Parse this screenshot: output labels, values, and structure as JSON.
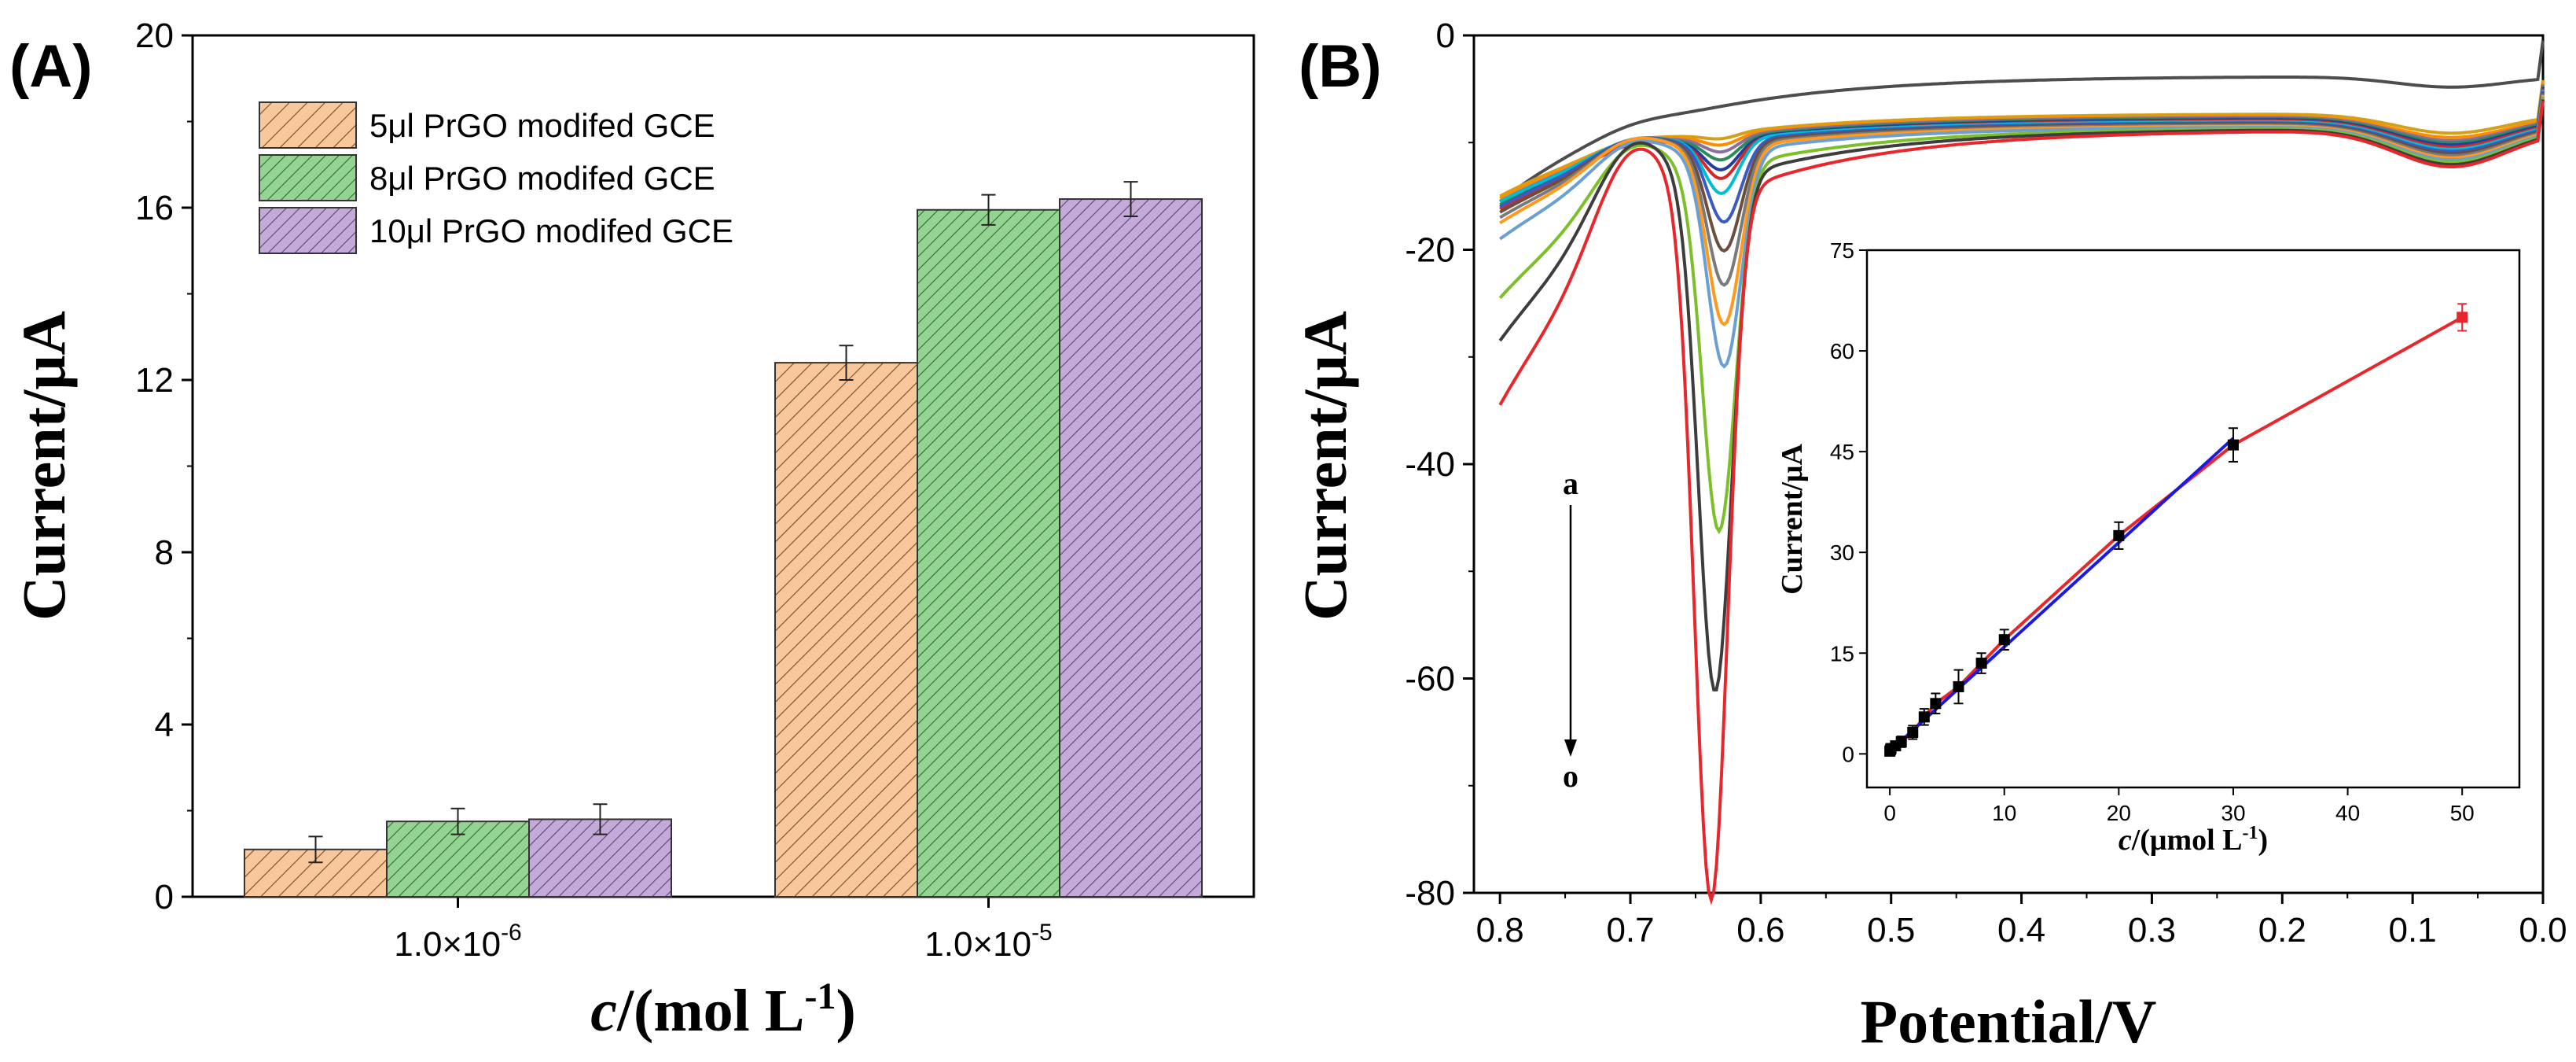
{
  "chart_data": [
    {
      "panel": "(A)",
      "type": "bar",
      "xlabel_italic": "c",
      "xlabel_rest": "/(mol L",
      "xlabel_sup": "-1",
      "xlabel_close": ")",
      "ylabel": "Current/μA",
      "ylim": [
        0,
        20
      ],
      "yticks": [
        "0",
        "4",
        "8",
        "12",
        "16",
        "20"
      ],
      "categories": [
        {
          "base": "1.0×10",
          "exp": "-6"
        },
        {
          "base": "1.0×10",
          "exp": "-5"
        }
      ],
      "series": [
        {
          "name": "5μl PrGO modifed GCE",
          "color": "#f8c79c",
          "values": [
            1.1,
            12.4
          ],
          "errors": [
            0.3,
            0.4
          ]
        },
        {
          "name": "8μl PrGO modifed GCE",
          "color": "#93d493",
          "values": [
            1.75,
            15.95
          ],
          "errors": [
            0.3,
            0.35
          ]
        },
        {
          "name": "10μl PrGO modifed GCE",
          "color": "#c4aad8",
          "values": [
            1.8,
            16.2
          ],
          "errors": [
            0.35,
            0.4
          ]
        }
      ],
      "legend_position": "top-left"
    },
    {
      "panel": "(B)",
      "type": "line",
      "xlabel": "Potential/V",
      "ylabel": "Current/μA",
      "xlim": [
        0.8,
        0.0
      ],
      "ylim": [
        -80,
        0
      ],
      "xticks": [
        "0.8",
        "0.7",
        "0.6",
        "0.5",
        "0.4",
        "0.3",
        "0.2",
        "0.1",
        "0.0"
      ],
      "yticks": [
        "0",
        "-20",
        "-40",
        "-60",
        "-80"
      ],
      "annotation_start": "a",
      "annotation_end": "o",
      "curves": [
        {
          "color": "#4d4d4d",
          "start": -15.5,
          "plateau": -3.8,
          "peak_depth": 0.0,
          "peak_pos": 0.63,
          "rise": 0.5,
          "shoulder": -1.0
        },
        {
          "color": "#d4a017",
          "start": -15.0,
          "plateau": -7.3,
          "peak_depth": 0.5,
          "peak_pos": 0.63,
          "rise": 0.8,
          "shoulder": -1.8
        },
        {
          "color": "#ff8c00",
          "start": -15.2,
          "plateau": -7.5,
          "peak_depth": 0.9,
          "peak_pos": 0.63,
          "rise": 0.9,
          "shoulder": -2.0
        },
        {
          "color": "#8b6f9e",
          "start": -15.5,
          "plateau": -7.6,
          "peak_depth": 1.4,
          "peak_pos": 0.63,
          "rise": 1.0,
          "shoulder": -2.2
        },
        {
          "color": "#2e8b57",
          "start": -15.8,
          "plateau": -7.7,
          "peak_depth": 2.0,
          "peak_pos": 0.63,
          "rise": 1.1,
          "shoulder": -2.3
        },
        {
          "color": "#1f3fa0",
          "start": -16.0,
          "plateau": -7.8,
          "peak_depth": 2.8,
          "peak_pos": 0.63,
          "rise": 1.2,
          "shoulder": -2.4
        },
        {
          "color": "#d62728",
          "start": -16.2,
          "plateau": -7.9,
          "peak_depth": 3.5,
          "peak_pos": 0.63,
          "rise": 1.3,
          "shoulder": -2.5
        },
        {
          "color": "#00bcd4",
          "start": -15.5,
          "plateau": -8.0,
          "peak_depth": 5.0,
          "peak_pos": 0.63,
          "rise": 1.5,
          "shoulder": -2.6
        },
        {
          "color": "#3a5bbf",
          "start": -16.0,
          "plateau": -8.1,
          "peak_depth": 7.5,
          "peak_pos": 0.628,
          "rise": 1.8,
          "shoulder": -2.7
        },
        {
          "color": "#6b4e3d",
          "start": -16.5,
          "plateau": -8.2,
          "peak_depth": 10.0,
          "peak_pos": 0.628,
          "rise": 2.0,
          "shoulder": -2.8
        },
        {
          "color": "#7a7a7a",
          "start": -17.0,
          "plateau": -8.3,
          "peak_depth": 13.0,
          "peak_pos": 0.628,
          "rise": 2.3,
          "shoulder": -2.9
        },
        {
          "color": "#ff9a1f",
          "start": -17.5,
          "plateau": -8.4,
          "peak_depth": 16.5,
          "peak_pos": 0.628,
          "rise": 2.6,
          "shoulder": -3.0
        },
        {
          "color": "#6a9fd4",
          "start": -19.0,
          "plateau": -8.5,
          "peak_depth": 20.0,
          "peak_pos": 0.628,
          "rise": 3.0,
          "shoulder": -3.1
        },
        {
          "color": "#7cbf2b",
          "start": -24.5,
          "plateau": -8.6,
          "peak_depth": 34.0,
          "peak_pos": 0.632,
          "rise": 5.0,
          "shoulder": -3.2
        },
        {
          "color": "#3d3d3d",
          "start": -28.5,
          "plateau": -8.7,
          "peak_depth": 48.0,
          "peak_pos": 0.635,
          "rise": 7.0,
          "shoulder": -3.3
        },
        {
          "color": "#e8262b",
          "start": -34.5,
          "plateau": -8.8,
          "peak_depth": 66.0,
          "peak_pos": 0.638,
          "rise": 9.0,
          "shoulder": -3.4
        }
      ],
      "inset": {
        "type": "scatter",
        "xlabel_italic": "c",
        "xlabel_rest": "/(μmol L",
        "xlabel_sup": "-1",
        "xlabel_close": ")",
        "ylabel": "Current/μA",
        "xlim": [
          -2,
          55
        ],
        "ylim": [
          -5,
          75
        ],
        "xticks": [
          "0",
          "10",
          "20",
          "30",
          "40",
          "50"
        ],
        "yticks": [
          "0",
          "15",
          "30",
          "45",
          "60",
          "75"
        ],
        "points": [
          {
            "x": 0.0,
            "y": 0.4,
            "err": 0.5
          },
          {
            "x": 0.05,
            "y": 0.6,
            "err": 0.5
          },
          {
            "x": 0.1,
            "y": 0.8,
            "err": 0.5
          },
          {
            "x": 0.5,
            "y": 1.2,
            "err": 0.6
          },
          {
            "x": 1.0,
            "y": 1.8,
            "err": 0.8
          },
          {
            "x": 2.0,
            "y": 3.2,
            "err": 1.0
          },
          {
            "x": 3.0,
            "y": 5.5,
            "err": 1.2
          },
          {
            "x": 4.0,
            "y": 7.5,
            "err": 1.5
          },
          {
            "x": 6.0,
            "y": 10.0,
            "err": 2.5
          },
          {
            "x": 8.0,
            "y": 13.5,
            "err": 1.5
          },
          {
            "x": 10.0,
            "y": 17.0,
            "err": 1.5
          },
          {
            "x": 20.0,
            "y": 32.5,
            "err": 2.0
          },
          {
            "x": 30.0,
            "y": 46.0,
            "err": 2.5
          },
          {
            "x": 50.0,
            "y": 65.0,
            "err": 2.0
          }
        ],
        "fit_low": {
          "color": "#1a1ae6",
          "x": [
            0,
            30
          ],
          "y": [
            0.4,
            47.0
          ]
        },
        "fit_high_color": "#e8262b",
        "last_point_color": "#e8262b"
      }
    }
  ]
}
